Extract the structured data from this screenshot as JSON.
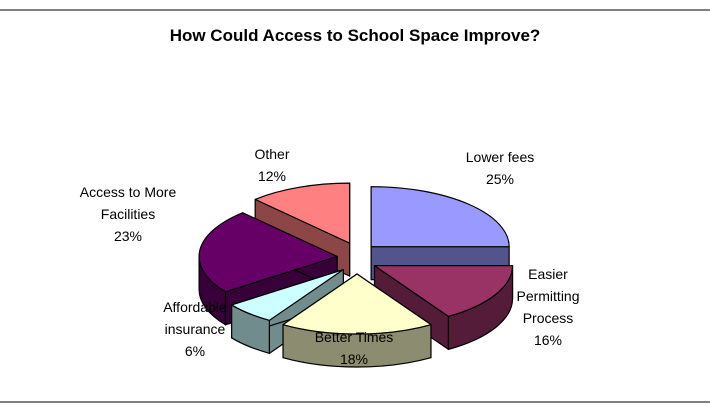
{
  "chart_data": {
    "type": "pie",
    "title": "How Could Access to School Space Improve?",
    "three_d": true,
    "exploded": true,
    "categories": [
      "Lower fees",
      "Easier Permitting Process",
      "Better Times",
      "Affordable insurance",
      "Access to More Facilities",
      "Other"
    ],
    "values": [
      25,
      16,
      18,
      6,
      23,
      12
    ],
    "unit": "%",
    "colors": [
      "#9999ff",
      "#993366",
      "#ffffcc",
      "#ccffff",
      "#660066",
      "#ff8080"
    ],
    "labels": [
      {
        "lines": [
          "Lower fees"
        ],
        "value": "25%"
      },
      {
        "lines": [
          "Easier",
          "Permitting",
          "Process"
        ],
        "value": "16%"
      },
      {
        "lines": [
          "Better Times"
        ],
        "value": "18%"
      },
      {
        "lines": [
          "Affordable",
          "insurance"
        ],
        "value": "6%"
      },
      {
        "lines": [
          "Access to More",
          "Facilities"
        ],
        "value": "23%"
      },
      {
        "lines": [
          "Other"
        ],
        "value": "12%"
      }
    ]
  }
}
